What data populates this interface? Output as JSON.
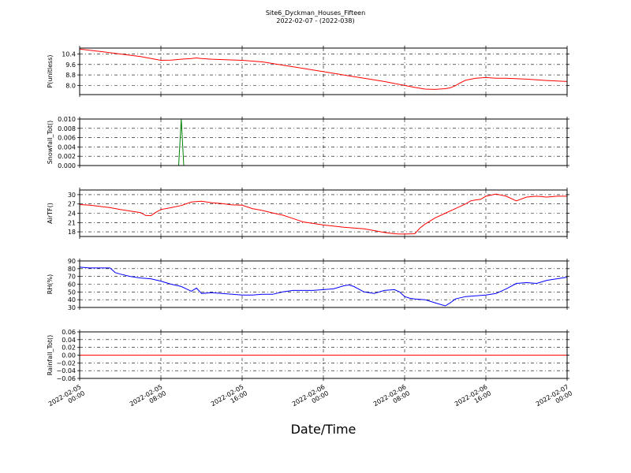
{
  "chart_data": {
    "type": "line",
    "title": "Site6_Dyckman_Houses_Fifteen",
    "subtitle": "2022-02-07 - (2022-038)",
    "xlabel": "Date/Time",
    "x_ticks": [
      {
        "l1": "2022-02-05",
        "l2": "00:00"
      },
      {
        "l1": "2022-02-05",
        "l2": "08:00"
      },
      {
        "l1": "2022-02-05",
        "l2": "16:00"
      },
      {
        "l1": "2022-02-06",
        "l2": "00:00"
      },
      {
        "l1": "2022-02-06",
        "l2": "08:00"
      },
      {
        "l1": "2022-02-06",
        "l2": "16:00"
      },
      {
        "l1": "2022-02-07",
        "l2": "00:00"
      }
    ],
    "xlim_hours": [
      0,
      48
    ],
    "grid": true,
    "panels": [
      {
        "name": "pressure",
        "ylabel": "P(unitless)",
        "ylim": [
          7.3,
          10.85
        ],
        "color": "#ff0000",
        "ticks": [
          "10.4",
          "9.6",
          "8.8",
          "8.0"
        ],
        "tick_values": [
          10.4,
          9.6,
          8.8,
          8.0
        ],
        "x": [
          0,
          2,
          4,
          6,
          8,
          9,
          10,
          11,
          11.5,
          12,
          13,
          16,
          18,
          20,
          22,
          24,
          26,
          28,
          30,
          32,
          33,
          34,
          35,
          36,
          36.5,
          37,
          37.5,
          38,
          39,
          40,
          41,
          42,
          44,
          46,
          48
        ],
        "y": [
          10.78,
          10.6,
          10.4,
          10.2,
          9.92,
          9.93,
          10.0,
          10.05,
          10.1,
          10.05,
          10.0,
          9.92,
          9.8,
          9.55,
          9.3,
          9.05,
          8.8,
          8.55,
          8.3,
          8.0,
          7.85,
          7.72,
          7.7,
          7.75,
          7.82,
          7.98,
          8.2,
          8.4,
          8.55,
          8.6,
          8.55,
          8.55,
          8.48,
          8.38,
          8.3
        ]
      },
      {
        "name": "snowfall",
        "ylabel": "Snowfall_Tot()",
        "ylim": [
          0,
          0.01
        ],
        "color": "#008000",
        "ticks": [
          "0.010",
          "0.008",
          "0.006",
          "0.004",
          "0.002",
          "0.000"
        ],
        "tick_values": [
          0.01,
          0.008,
          0.006,
          0.004,
          0.002,
          0.0
        ],
        "x": [
          0,
          9.75,
          10,
          10.25,
          48
        ],
        "y": [
          0,
          0,
          0.01,
          0,
          0
        ]
      },
      {
        "name": "airtf",
        "ylabel": "AirTF()",
        "ylim": [
          16.5,
          31.5
        ],
        "color": "#ff0000",
        "ticks": [
          "30",
          "27",
          "24",
          "21",
          "18"
        ],
        "tick_values": [
          30,
          27,
          24,
          21,
          18
        ],
        "x": [
          0,
          1,
          2,
          3,
          4,
          5,
          6,
          6.5,
          7,
          7.5,
          8,
          9,
          10,
          11,
          12,
          13,
          14,
          15,
          16,
          17,
          18,
          19,
          20,
          21,
          22,
          24,
          26,
          28,
          29,
          30,
          31,
          31.5,
          32,
          33,
          33.5,
          34,
          35,
          36,
          37,
          38,
          38.5,
          39,
          39.5,
          40,
          41,
          42,
          43,
          44,
          45,
          46,
          47,
          48
        ],
        "y": [
          26.8,
          26.6,
          26.2,
          25.8,
          25.2,
          24.7,
          24.2,
          23.3,
          23.2,
          24.3,
          25.2,
          25.8,
          26.5,
          27.6,
          27.9,
          27.4,
          27.1,
          26.7,
          26.6,
          25.5,
          24.9,
          24.1,
          23.4,
          22.3,
          21.2,
          20.2,
          19.5,
          19.0,
          18.4,
          17.8,
          17.4,
          17.3,
          17.3,
          17.4,
          19.2,
          20.5,
          22.5,
          24.0,
          25.5,
          27.0,
          28.0,
          28.3,
          28.5,
          29.5,
          30.2,
          29.5,
          28.0,
          29.2,
          29.5,
          29.2,
          29.5,
          29.5
        ]
      },
      {
        "name": "rh",
        "ylabel": "RH(%)",
        "ylim": [
          30,
          90
        ],
        "color": "#0000ff",
        "ticks": [
          "90",
          "80",
          "70",
          "60",
          "50",
          "40",
          "30"
        ],
        "tick_values": [
          90,
          80,
          70,
          60,
          50,
          40,
          30
        ],
        "x": [
          0,
          1,
          2,
          3,
          3.5,
          4,
          5,
          6,
          7,
          8,
          9,
          10,
          10.5,
          11,
          11.5,
          12,
          13,
          14,
          15,
          16,
          17,
          18,
          19,
          20,
          21,
          22,
          23,
          24,
          25,
          26,
          26.5,
          27,
          28,
          29,
          30,
          31,
          31.5,
          32,
          32.5,
          33,
          34,
          34.5,
          35,
          36,
          36.5,
          37,
          38,
          39,
          40,
          41,
          42,
          43,
          44,
          45,
          46,
          47,
          48
        ],
        "y": [
          82,
          81,
          81,
          81,
          75,
          73,
          70,
          68,
          67,
          64,
          60,
          57,
          54,
          51,
          55,
          48,
          49,
          48,
          47,
          46,
          46,
          47,
          47,
          50,
          52,
          52,
          52,
          53,
          54,
          58,
          59,
          57,
          50,
          48,
          52,
          53,
          50,
          44,
          42,
          41,
          40,
          38,
          36,
          32,
          36,
          41,
          44,
          45,
          46,
          48,
          54,
          61,
          62,
          61,
          65,
          67,
          69
        ]
      },
      {
        "name": "rainfall",
        "ylabel": "Rainfall_Tot()",
        "ylim": [
          -0.06,
          0.06
        ],
        "color": "#ff0000",
        "ticks": [
          "0.06",
          "0.04",
          "0.02",
          "0.00",
          "−0.02",
          "−0.04",
          "−0.06"
        ],
        "tick_values": [
          0.06,
          0.04,
          0.02,
          0.0,
          -0.02,
          -0.04,
          -0.06
        ],
        "x": [
          0,
          48
        ],
        "y": [
          0,
          0
        ]
      }
    ]
  }
}
